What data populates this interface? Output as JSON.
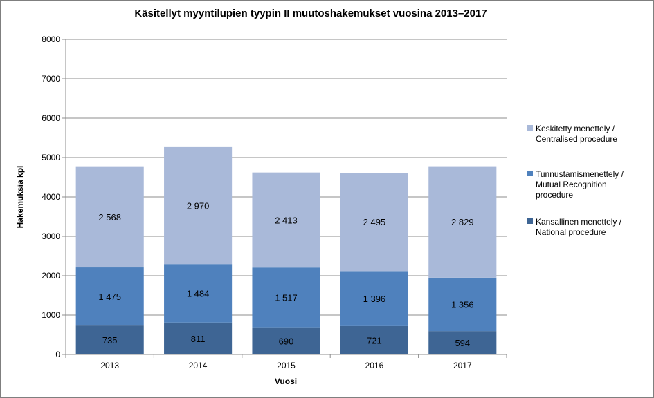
{
  "chart_data": {
    "type": "bar",
    "stacked": true,
    "title": "Käsitellyt myyntilupien tyypin II muutoshakemukset vuosina 2013–2017",
    "xlabel": "Vuosi",
    "ylabel": "Hakemuksia kpl",
    "ylim": [
      0,
      8000
    ],
    "yticks": [
      "0",
      "1000",
      "2000",
      "3000",
      "4000",
      "5000",
      "6000",
      "7000",
      "8000"
    ],
    "ytick_values": [
      0,
      1000,
      2000,
      3000,
      4000,
      5000,
      6000,
      7000,
      8000
    ],
    "grid": true,
    "legend_position": "right",
    "categories": [
      "2013",
      "2014",
      "2015",
      "2016",
      "2017"
    ],
    "series": [
      {
        "name": "Kansallinen menettely / National procedure",
        "legend_lines": [
          "Kansallinen menettely /",
          "National procedure"
        ],
        "color": "#3e6594",
        "values": [
          735,
          811,
          690,
          721,
          594
        ],
        "labels": [
          "735",
          "811",
          "690",
          "721",
          "594"
        ]
      },
      {
        "name": "Tunnustamismenettely / Mutual Recognition procedure",
        "legend_lines": [
          "Tunnustamismenettely /",
          "Mutual Recognition",
          "procedure"
        ],
        "color": "#4f81bd",
        "values": [
          1475,
          1484,
          1517,
          1396,
          1356
        ],
        "labels": [
          "1 475",
          "1 484",
          "1 517",
          "1 396",
          "1 356"
        ]
      },
      {
        "name": "Keskitetty menettely / Centralised procedure",
        "legend_lines": [
          "Keskitetty menettely /",
          "Centralised procedure"
        ],
        "color": "#a9b9d9",
        "values": [
          2568,
          2970,
          2413,
          2495,
          2829
        ],
        "labels": [
          "2 568",
          "2 970",
          "2 413",
          "2 495",
          "2 829"
        ]
      }
    ],
    "legend_order": [
      2,
      1,
      0
    ]
  }
}
